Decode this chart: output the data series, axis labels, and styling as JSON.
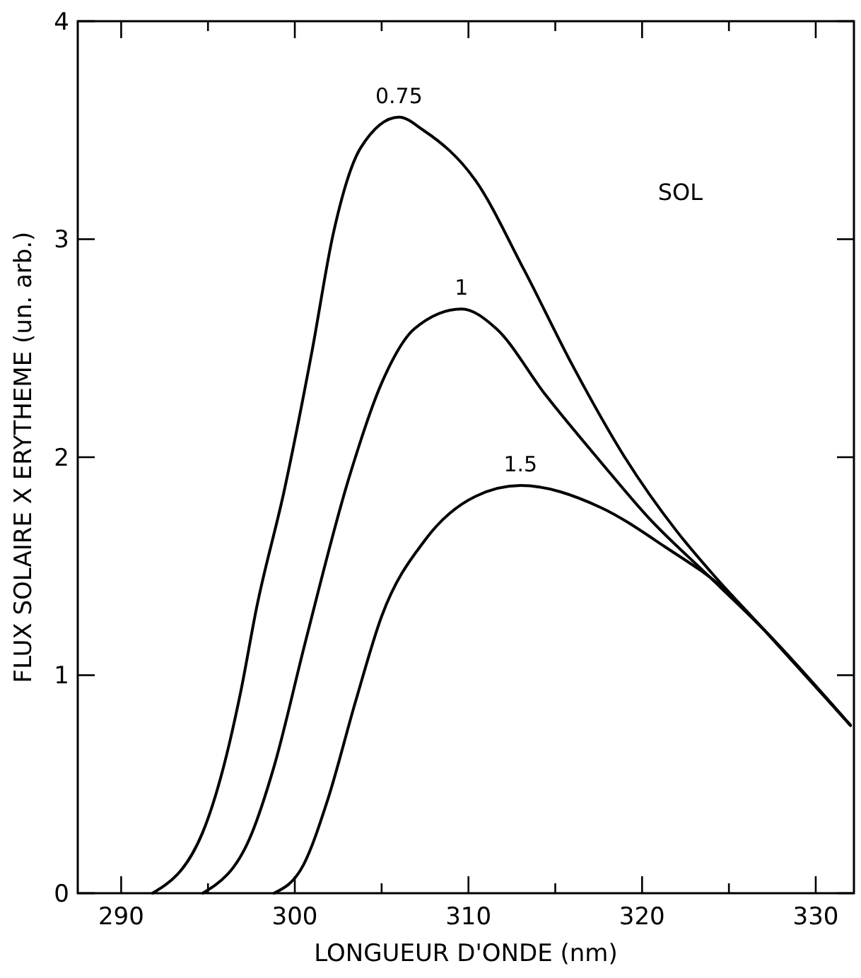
{
  "chart_data": {
    "type": "line",
    "xlabel": "LONGUEUR D'ONDE (nm)",
    "ylabel": "FLUX SOLAIRE X ERYTHEME (un. arb.)",
    "xlim": [
      287.5,
      332.2
    ],
    "ylim": [
      0,
      4
    ],
    "xticks": [
      290,
      {
        "value": 295,
        "label": null
      },
      300,
      {
        "value": 305,
        "label": null
      },
      310,
      {
        "value": 315,
        "label": null
      },
      320,
      {
        "value": 325,
        "label": null
      },
      330
    ],
    "yticks": [
      0,
      1,
      2,
      3,
      4
    ],
    "grid": false,
    "marker": "none",
    "line_style": "solid",
    "annotations": [
      "SOL"
    ],
    "series": [
      {
        "name": "0.75",
        "color": "#000000",
        "x": [
          291.8,
          294.7,
          295.9,
          296.9,
          297.8,
          299.4,
          301.0,
          302.2,
          303.8,
          306.0,
          307.4,
          310.4,
          313.2,
          316.0,
          319.0,
          322.0,
          324.0,
          327.0,
          332.0
        ],
        "values": [
          0,
          0.28,
          0.58,
          0.93,
          1.31,
          1.85,
          2.49,
          3.02,
          3.42,
          3.56,
          3.5,
          3.27,
          2.86,
          2.42,
          2.0,
          1.66,
          1.47,
          1.21,
          0.77
        ]
      },
      {
        "name": "1",
        "color": "#000000",
        "x": [
          294.7,
          297.5,
          298.8,
          300.6,
          303.1,
          305.0,
          306.9,
          309.6,
          311.6,
          314.4,
          317.6,
          320.4,
          323.9,
          327.0,
          332.0
        ],
        "values": [
          0,
          0.27,
          0.58,
          1.15,
          1.9,
          2.34,
          2.59,
          2.68,
          2.59,
          2.29,
          1.98,
          1.72,
          1.45,
          1.21,
          0.77
        ]
      },
      {
        "name": "1.5",
        "color": "#000000",
        "x": [
          298.8,
          300.5,
          301.9,
          303.5,
          305.0,
          307.5,
          310.4,
          313.0,
          317.6,
          321.3,
          324.8,
          327.0,
          332.0
        ],
        "values": [
          0,
          0.13,
          0.43,
          0.88,
          1.27,
          1.62,
          1.82,
          1.87,
          1.77,
          1.59,
          1.39,
          1.21,
          0.77
        ]
      }
    ]
  }
}
